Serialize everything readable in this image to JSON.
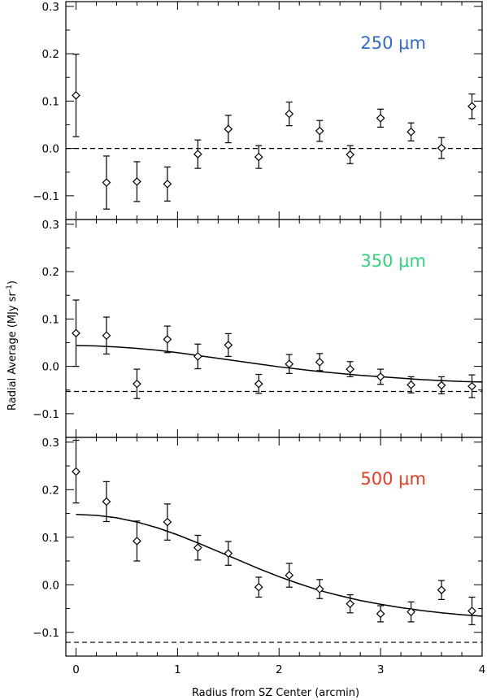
{
  "figure": {
    "xlabel": "Radius from SZ Center (arcmin)",
    "ylabel": "Radial Average (MJy sr",
    "ylabel_sup": "-1",
    "ylabel_close": ")"
  },
  "chart_data": [
    {
      "type": "scatter",
      "label": "250 μm",
      "label_color": "#2f6ad6",
      "xlim": [
        -0.1,
        4.0
      ],
      "ylim": [
        -0.15,
        0.31
      ],
      "xticks": [
        0,
        1,
        2,
        3,
        4
      ],
      "xtick_labels": [
        "0",
        "1",
        "2",
        "3",
        "4"
      ],
      "yticks": [
        -0.1,
        0.0,
        0.1,
        0.2,
        0.3
      ],
      "ytick_labels": [
        "−0.1",
        "0.0",
        "0.1",
        "0.2",
        "0.3"
      ],
      "x": [
        0.0,
        0.3,
        0.6,
        0.9,
        1.2,
        1.5,
        1.8,
        2.1,
        2.4,
        2.7,
        3.0,
        3.3,
        3.6,
        3.9
      ],
      "y": [
        0.112,
        -0.072,
        -0.07,
        -0.075,
        -0.012,
        0.041,
        -0.018,
        0.073,
        0.037,
        -0.013,
        0.064,
        0.035,
        0.001,
        0.089
      ],
      "yerr": [
        0.087,
        0.056,
        0.042,
        0.036,
        0.03,
        0.029,
        0.024,
        0.025,
        0.022,
        0.019,
        0.019,
        0.019,
        0.022,
        0.026
      ],
      "baseline": 0.0,
      "model": null
    },
    {
      "type": "scatter",
      "label": "350 μm",
      "label_color": "#2fd47a",
      "xlim": [
        -0.1,
        4.0
      ],
      "ylim": [
        -0.15,
        0.31
      ],
      "xticks": [
        0,
        1,
        2,
        3,
        4
      ],
      "xtick_labels": [
        "0",
        "1",
        "2",
        "3",
        "4"
      ],
      "yticks": [
        -0.1,
        0.0,
        0.1,
        0.2,
        0.3
      ],
      "ytick_labels": [
        "−0.1",
        "0.0",
        "0.1",
        "0.2",
        "0.3"
      ],
      "x": [
        0.0,
        0.3,
        0.6,
        0.9,
        1.2,
        1.5,
        1.8,
        2.1,
        2.4,
        2.7,
        3.0,
        3.3,
        3.6,
        3.9
      ],
      "y": [
        0.07,
        0.065,
        -0.037,
        0.057,
        0.021,
        0.045,
        -0.037,
        0.005,
        0.009,
        -0.006,
        -0.022,
        -0.039,
        -0.04,
        -0.042
      ],
      "yerr": [
        0.07,
        0.039,
        0.031,
        0.028,
        0.026,
        0.024,
        0.02,
        0.02,
        0.018,
        0.016,
        0.016,
        0.017,
        0.018,
        0.024
      ],
      "baseline": -0.053,
      "model": {
        "x": [
          0.0,
          0.2,
          0.4,
          0.6,
          0.8,
          1.0,
          1.2,
          1.4,
          1.6,
          1.8,
          2.0,
          2.2,
          2.4,
          2.6,
          2.8,
          3.0,
          3.2,
          3.4,
          3.6,
          3.8,
          4.0
        ],
        "y": [
          0.044,
          0.043,
          0.041,
          0.038,
          0.034,
          0.029,
          0.023,
          0.017,
          0.011,
          0.005,
          -0.001,
          -0.006,
          -0.011,
          -0.015,
          -0.019,
          -0.022,
          -0.025,
          -0.028,
          -0.03,
          -0.032,
          -0.033
        ]
      }
    },
    {
      "type": "scatter",
      "label": "500 μm",
      "label_color": "#ea3a24",
      "xlim": [
        -0.1,
        4.0
      ],
      "ylim": [
        -0.15,
        0.31
      ],
      "xticks": [
        0,
        1,
        2,
        3,
        4
      ],
      "xtick_labels": [
        "0",
        "1",
        "2",
        "3",
        "4"
      ],
      "yticks": [
        -0.1,
        0.0,
        0.1,
        0.2,
        0.3
      ],
      "ytick_labels": [
        "−0.1",
        "0.0",
        "0.1",
        "0.2",
        "0.3"
      ],
      "x": [
        0.0,
        0.3,
        0.6,
        0.9,
        1.2,
        1.5,
        1.8,
        2.1,
        2.4,
        2.7,
        3.0,
        3.3,
        3.6,
        3.9
      ],
      "y": [
        0.238,
        0.175,
        0.092,
        0.132,
        0.078,
        0.066,
        -0.005,
        0.02,
        -0.009,
        -0.04,
        -0.061,
        -0.057,
        -0.011,
        -0.055
      ],
      "yerr": [
        0.066,
        0.042,
        0.042,
        0.038,
        0.026,
        0.025,
        0.021,
        0.025,
        0.02,
        0.019,
        0.017,
        0.021,
        0.02,
        0.029
      ],
      "baseline": -0.121,
      "model": {
        "x": [
          0.0,
          0.2,
          0.4,
          0.6,
          0.8,
          1.0,
          1.2,
          1.4,
          1.6,
          1.8,
          2.0,
          2.2,
          2.4,
          2.6,
          2.8,
          3.0,
          3.2,
          3.4,
          3.6,
          3.8,
          4.0
        ],
        "y": [
          0.148,
          0.146,
          0.141,
          0.132,
          0.12,
          0.105,
          0.088,
          0.07,
          0.052,
          0.034,
          0.017,
          0.002,
          -0.012,
          -0.023,
          -0.033,
          -0.041,
          -0.048,
          -0.054,
          -0.059,
          -0.063,
          -0.066
        ]
      }
    }
  ]
}
